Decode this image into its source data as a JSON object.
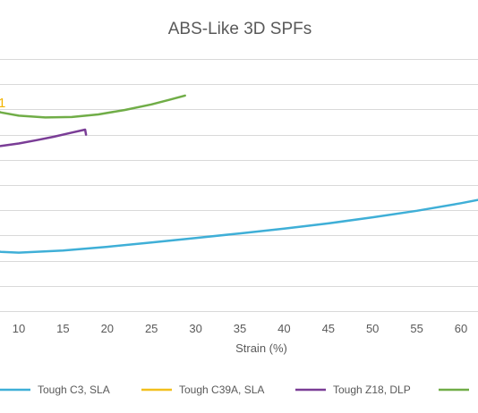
{
  "chart_data": {
    "type": "line",
    "title": "ABS-Like 3D SPFs",
    "xlabel": "Strain (%)",
    "ylabel": "",
    "x_ticks": [
      "10",
      "15",
      "20",
      "25",
      "30",
      "35",
      "40",
      "45",
      "50",
      "55",
      "60"
    ],
    "grid": "horizontal",
    "legend_position": "bottom",
    "annotation_text": "1",
    "series": [
      {
        "name": "Tough C3, SLA",
        "color": "#3fafd7",
        "points": [
          [
            4,
            2.45
          ],
          [
            8,
            2.35
          ],
          [
            10,
            2.32
          ],
          [
            15,
            2.4
          ],
          [
            20,
            2.55
          ],
          [
            25,
            2.72
          ],
          [
            30,
            2.9
          ],
          [
            35,
            3.08
          ],
          [
            40,
            3.27
          ],
          [
            45,
            3.48
          ],
          [
            50,
            3.72
          ],
          [
            55,
            3.98
          ],
          [
            60,
            4.28
          ],
          [
            62.5,
            4.45
          ]
        ]
      },
      {
        "name": "Tough C39A, SLA",
        "color": "#f2c01d",
        "points": []
      },
      {
        "name": "Tough Z18, DLP",
        "color": "#7a3d96",
        "points": [
          [
            4,
            6.45
          ],
          [
            6,
            6.48
          ],
          [
            8,
            6.55
          ],
          [
            10,
            6.65
          ],
          [
            12,
            6.78
          ],
          [
            14,
            6.92
          ],
          [
            16,
            7.08
          ],
          [
            17.5,
            7.2
          ],
          [
            17.6,
            7.0
          ]
        ]
      },
      {
        "name": "",
        "color": "#70ad47",
        "points": [
          [
            4,
            8.45
          ],
          [
            6,
            8.1
          ],
          [
            8,
            7.88
          ],
          [
            10,
            7.75
          ],
          [
            13,
            7.68
          ],
          [
            16,
            7.7
          ],
          [
            19,
            7.8
          ],
          [
            22,
            7.98
          ],
          [
            25,
            8.2
          ],
          [
            27,
            8.38
          ],
          [
            28.8,
            8.55
          ]
        ]
      }
    ]
  }
}
